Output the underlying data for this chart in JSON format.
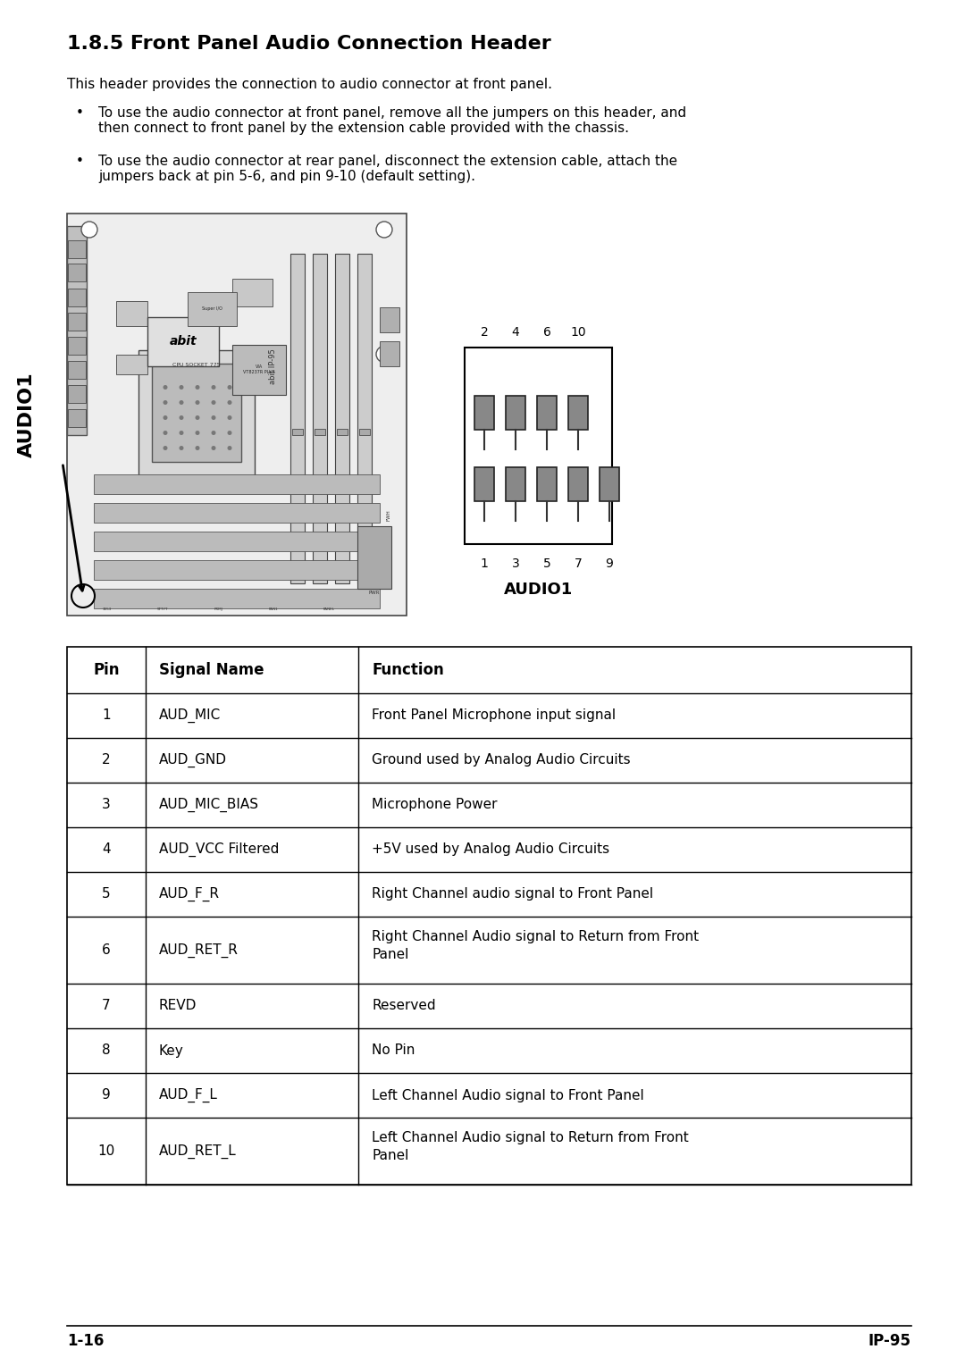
{
  "title": "1.8.5 Front Panel Audio Connection Header",
  "intro": "This header provides the connection to audio connector at front panel.",
  "bullet1_line1": "To use the audio connector at front panel, remove all the jumpers on this header, and",
  "bullet1_line2": "then connect to front panel by the extension cable provided with the chassis.",
  "bullet2_line1": "To use the audio connector at rear panel, disconnect the extension cable, attach the",
  "bullet2_line2": "jumpers back at pin 5-6, and pin 9-10 (default setting).",
  "table_headers": [
    "Pin",
    "Signal Name",
    "Function"
  ],
  "table_data": [
    [
      "1",
      "AUD_MIC",
      "Front Panel Microphone input signal"
    ],
    [
      "2",
      "AUD_GND",
      "Ground used by Analog Audio Circuits"
    ],
    [
      "3",
      "AUD_MIC_BIAS",
      "Microphone Power"
    ],
    [
      "4",
      "AUD_VCC Filtered",
      "+5V used by Analog Audio Circuits"
    ],
    [
      "5",
      "AUD_F_R",
      "Right Channel audio signal to Front Panel"
    ],
    [
      "6",
      "AUD_RET_R",
      "Right Channel Audio signal to Return from Front\nPanel"
    ],
    [
      "7",
      "REVD",
      "Reserved"
    ],
    [
      "8",
      "Key",
      "No Pin"
    ],
    [
      "9",
      "AUD_F_L",
      "Left Channel Audio signal to Front Panel"
    ],
    [
      "10",
      "AUD_RET_L",
      "Left Channel Audio signal to Return from Front\nPanel"
    ]
  ],
  "footer_left": "1-16",
  "footer_right": "IP-95",
  "bg_color": "#ffffff",
  "text_color": "#000000"
}
